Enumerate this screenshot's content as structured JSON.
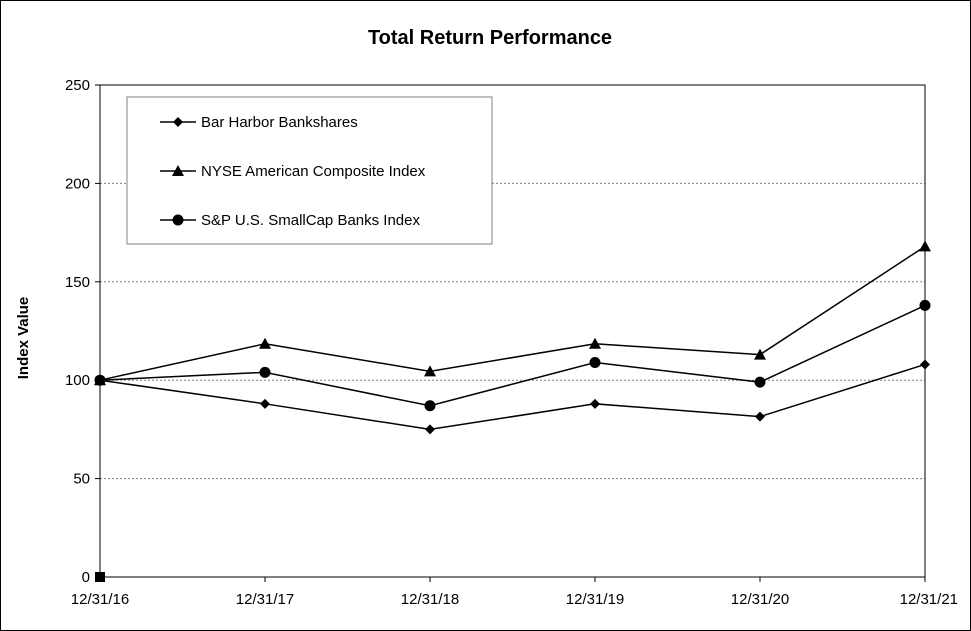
{
  "chart_data": {
    "type": "line",
    "title": "Total Return Performance",
    "xlabel": "",
    "ylabel": "Index Value",
    "categories": [
      "12/31/16",
      "12/31/17",
      "12/31/18",
      "12/31/19",
      "12/31/20",
      "12/31/21"
    ],
    "ylim": [
      0,
      250
    ],
    "yticks": [
      0,
      50,
      100,
      150,
      200,
      250
    ],
    "grid": "horizontal dashed",
    "legend_position": "top-left",
    "series": [
      {
        "name": "Bar Harbor Bankshares",
        "marker": "diamond",
        "values": [
          100,
          88,
          75,
          88,
          81.5,
          108
        ]
      },
      {
        "name": "NYSE American Composite Index",
        "marker": "triangle",
        "values": [
          100,
          118.5,
          104.5,
          118.5,
          113,
          168
        ]
      },
      {
        "name": "S&P U.S. SmallCap Banks Index",
        "marker": "circle",
        "values": [
          100,
          104,
          87,
          109,
          99,
          138
        ]
      }
    ],
    "colors": {
      "line": "#000000",
      "grid": "#808080"
    }
  }
}
